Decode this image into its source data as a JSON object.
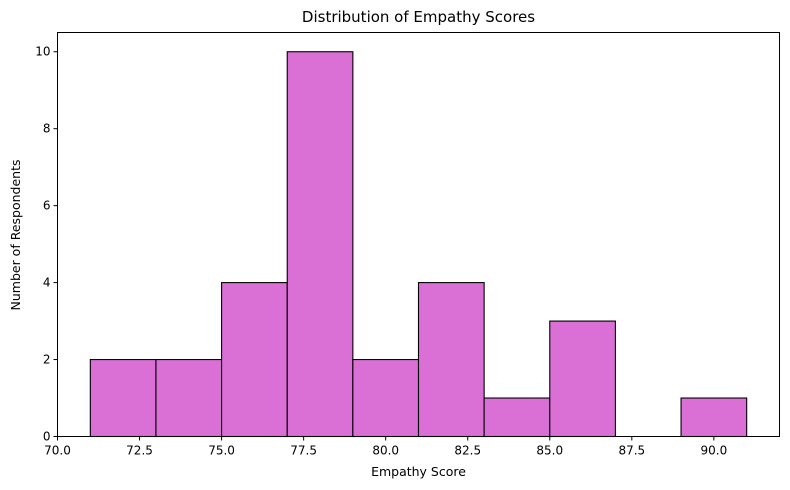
{
  "chart_data": {
    "type": "bar",
    "title": "Distribution of Empathy Scores",
    "xlabel": "Empathy Score",
    "ylabel": "Number of Respondents",
    "xlim": [
      70.0,
      92.0
    ],
    "ylim": [
      0,
      10.5
    ],
    "xticks": [
      70.0,
      72.5,
      75.0,
      77.5,
      80.0,
      82.5,
      85.0,
      87.5,
      90.0
    ],
    "xtick_labels": [
      "70.0",
      "72.5",
      "75.0",
      "77.5",
      "80.0",
      "82.5",
      "85.0",
      "87.5",
      "90.0"
    ],
    "yticks": [
      0,
      2,
      4,
      6,
      8,
      10
    ],
    "ytick_labels": [
      "0",
      "2",
      "4",
      "6",
      "8",
      "10"
    ],
    "bins": [
      {
        "start": 71,
        "end": 73,
        "count": 2
      },
      {
        "start": 73,
        "end": 75,
        "count": 2
      },
      {
        "start": 75,
        "end": 77,
        "count": 4
      },
      {
        "start": 77,
        "end": 79,
        "count": 10
      },
      {
        "start": 79,
        "end": 81,
        "count": 2
      },
      {
        "start": 81,
        "end": 83,
        "count": 4
      },
      {
        "start": 83,
        "end": 85,
        "count": 1
      },
      {
        "start": 85,
        "end": 87,
        "count": 3
      },
      {
        "start": 87,
        "end": 89,
        "count": 0
      },
      {
        "start": 89,
        "end": 91,
        "count": 1
      }
    ],
    "bar_color": "#da70d6",
    "edge_color": "#000000",
    "grid": false,
    "legend": "none"
  }
}
